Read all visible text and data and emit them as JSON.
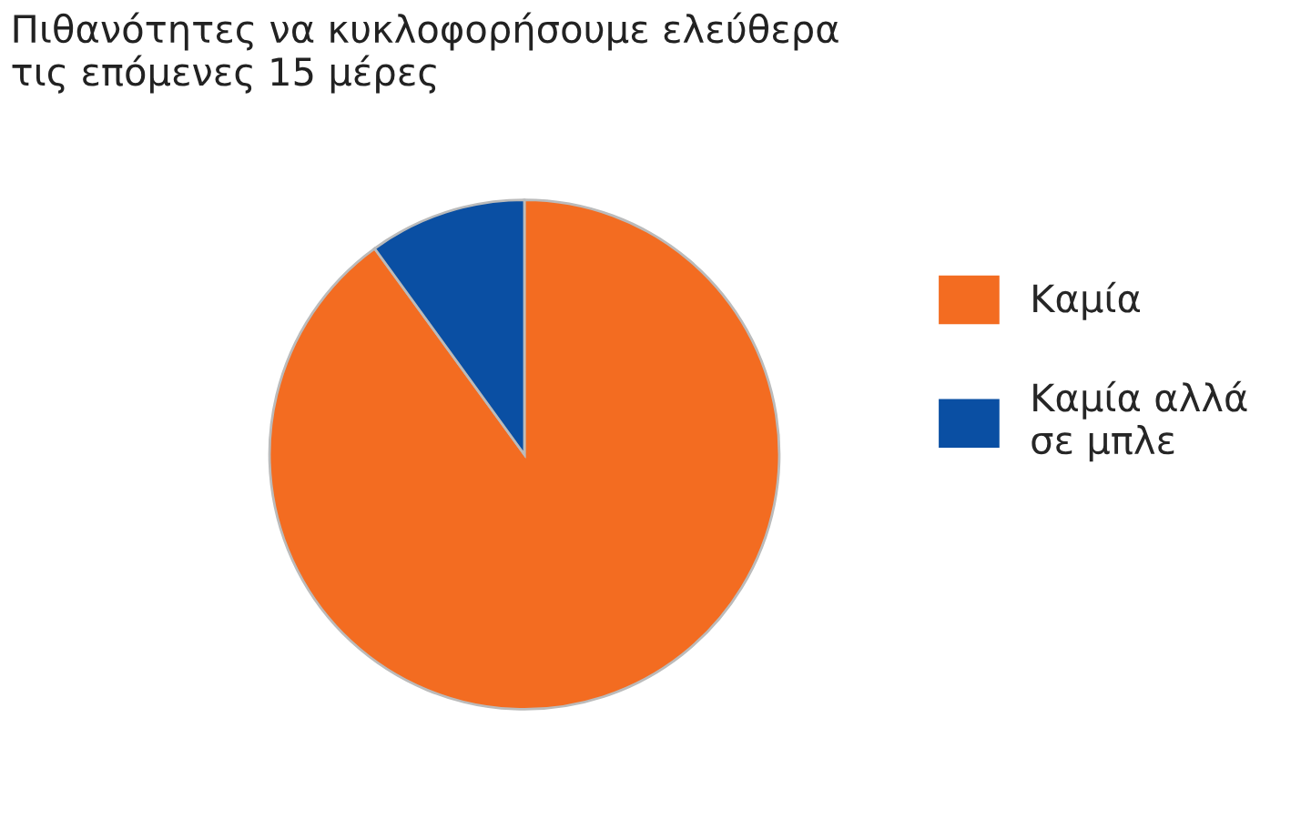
{
  "chart_data": {
    "type": "pie",
    "title": "Πιθανότητες να κυκλοφορήσουμε ελεύθερα\nτις επόμενες 15 μέρες",
    "categories": [
      "Καμία",
      "Καμία αλλά\nσε μπλε"
    ],
    "values": [
      90,
      10
    ],
    "colors": [
      "#f36c21",
      "#0a4fa3"
    ],
    "legend": "right"
  }
}
